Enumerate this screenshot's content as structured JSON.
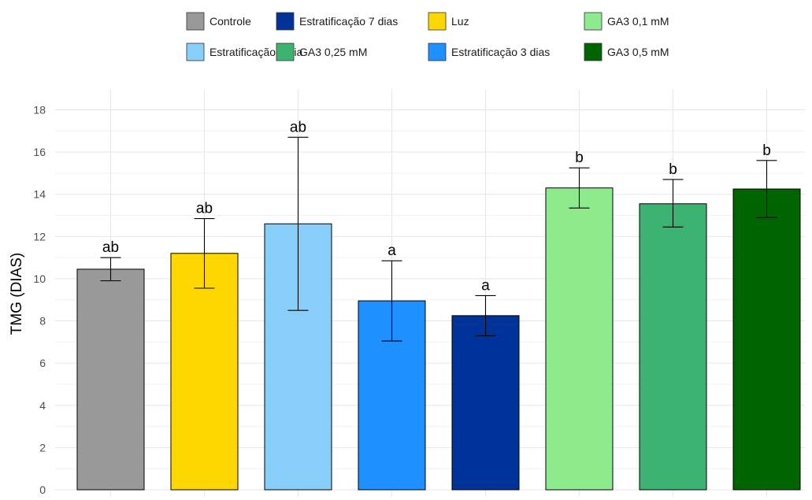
{
  "chart_data": {
    "type": "bar",
    "title": "",
    "xlabel": "",
    "ylabel": "TMG (DIAS)",
    "ylim": [
      0,
      18.6
    ],
    "yticks": [
      0,
      2,
      4,
      6,
      8,
      10,
      12,
      14,
      16,
      18
    ],
    "grid": true,
    "legend_position": "top",
    "categories": [
      "Controle",
      "Luz",
      "Estratificação 1 dia",
      "Estratificação 3 dias",
      "Estratificação 7 dias",
      "GA3 0,1 mM",
      "GA3 0,25 mM",
      "GA3 0,5 mM"
    ],
    "values": [
      10.45,
      11.2,
      12.6,
      8.95,
      8.25,
      14.3,
      13.55,
      14.25
    ],
    "error_low": [
      9.9,
      9.55,
      8.5,
      7.05,
      7.3,
      13.35,
      12.45,
      12.9
    ],
    "error_high": [
      11.0,
      12.85,
      16.7,
      10.85,
      9.2,
      15.25,
      14.7,
      15.6
    ],
    "significance": [
      "ab",
      "ab",
      "ab",
      "a",
      "a",
      "b",
      "b",
      "b"
    ],
    "colors": [
      "#999999",
      "#ffd700",
      "#87cefa",
      "#1e90ff",
      "#00339a",
      "#8deb8d",
      "#3cb371",
      "#006400"
    ],
    "legend_order": [
      0,
      2,
      4,
      6,
      1,
      3,
      5,
      7
    ]
  }
}
